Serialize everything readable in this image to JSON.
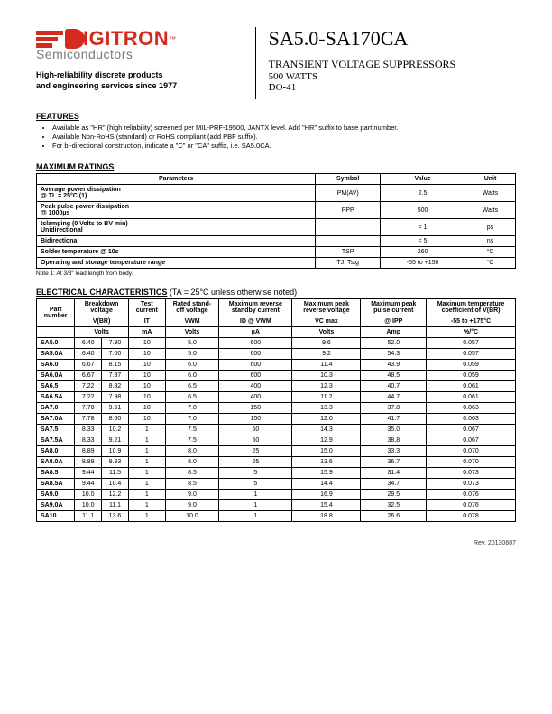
{
  "brand": {
    "name": "IGITRON",
    "sub": "Semiconductors",
    "tm": "™"
  },
  "tagline1": "High-reliability discrete products",
  "tagline2": "and engineering services since 1977",
  "title": "SA5.0-SA170CA",
  "subtitle": "TRANSIENT VOLTAGE SUPPRESSORS",
  "wattage": "500 WATTS",
  "package": "DO-41",
  "features_h": "FEATURES",
  "features": [
    "Available as \"HR\" (high reliability) screened per MIL-PRF-19500, JANTX level. Add \"HR\" suffix to base part number.",
    "Available Non-RoHS (standard) or RoHS compliant (add PBF suffix).",
    "For bi-directional construction, indicate a \"C\" or \"CA\" suffix, i.e. SA5.0CA."
  ],
  "ratings_h": "MAXIMUM RATINGS",
  "ratings_cols": [
    "Parameters",
    "Symbol",
    "Value",
    "Unit"
  ],
  "ratings": [
    {
      "p": "Average power dissipation\n@ TL = 25°C (1)",
      "s": "PM(AV)",
      "v": "2.5",
      "u": "Watts"
    },
    {
      "p": "Peak pulse power dissipation\n@ 1000µs",
      "s": "PPP",
      "v": "500",
      "u": "Watts"
    },
    {
      "p": "tclamping (0 Volts to BV min)\nUnidirectional",
      "s": "",
      "v": "< 1",
      "u": "ps"
    },
    {
      "p": "Bidirectional",
      "s": "",
      "v": "< 5",
      "u": "ns"
    },
    {
      "p": "Solder temperature @ 10s",
      "s": "TSP",
      "v": "260",
      "u": "°C"
    },
    {
      "p": "Operating and storage temperature range",
      "s": "TJ, Tstg",
      "v": "-55 to +150",
      "u": "°C"
    }
  ],
  "ratings_note": "Note 1: At 3/8\" lead length from body.",
  "elec_h": "ELECTRICAL CHARACTERISTICS",
  "elec_cond": "(TA = 25°C unless otherwise noted)",
  "elec_head1": [
    "Part number",
    "Breakdown voltage",
    "Test current",
    "Rated stand-off voltage",
    "Maximum reverse standby current",
    "Maximum peak reverse voltage",
    "Maximum peak pulse current",
    "Maximum temperature coefficient of V(BR)"
  ],
  "elec_head2": [
    "V(BR)",
    "IT",
    "VWM",
    "ID @ VWM",
    "VC max",
    "@ IPP",
    "-55 to +175°C"
  ],
  "elec_head3": [
    "Volts",
    "mA",
    "Volts",
    "µA",
    "Volts",
    "Amp",
    "%/°C"
  ],
  "elec_rows": [
    [
      "SA5.0",
      "6.40",
      "7.30",
      "10",
      "5.0",
      "600",
      "9.6",
      "52.0",
      "0.057"
    ],
    [
      "SA5.0A",
      "6.40",
      "7.00",
      "10",
      "5.0",
      "600",
      "9.2",
      "54.3",
      "0.057"
    ],
    [
      "SA6.0",
      "6.67",
      "8.15",
      "10",
      "6.0",
      "600",
      "11.4",
      "43.9",
      "0.059"
    ],
    [
      "SA6.0A",
      "6.67",
      "7.37",
      "10",
      "6.0",
      "600",
      "10.3",
      "48.5",
      "0.059"
    ],
    [
      "SA6.5",
      "7.22",
      "8.82",
      "10",
      "6.5",
      "400",
      "12.3",
      "40.7",
      "0.061"
    ],
    [
      "SA6.5A",
      "7.22",
      "7.98",
      "10",
      "6.5",
      "400",
      "11.2",
      "44.7",
      "0.061"
    ],
    [
      "SA7.0",
      "7.78",
      "9.51",
      "10",
      "7.0",
      "150",
      "13.3",
      "37.8",
      "0.063"
    ],
    [
      "SA7.0A",
      "7.78",
      "8.60",
      "10",
      "7.0",
      "150",
      "12.0",
      "41.7",
      "0.063"
    ],
    [
      "SA7.5",
      "8.33",
      "10.2",
      "1",
      "7.5",
      "50",
      "14.3",
      "35.0",
      "0.067"
    ],
    [
      "SA7.5A",
      "8.33",
      "9.21",
      "1",
      "7.5",
      "50",
      "12.9",
      "38.8",
      "0.067"
    ],
    [
      "SA8.0",
      "8.89",
      "10.9",
      "1",
      "8.0",
      "25",
      "15.0",
      "33.3",
      "0.070"
    ],
    [
      "SA8.0A",
      "8.89",
      "9.83",
      "1",
      "8.0",
      "25",
      "13.6",
      "36.7",
      "0.070"
    ],
    [
      "SA8.5",
      "9.44",
      "11.5",
      "1",
      "8.5",
      "5",
      "15.9",
      "31.4",
      "0.073"
    ],
    [
      "SA8.5A",
      "9.44",
      "10.4",
      "1",
      "8.5",
      "5",
      "14.4",
      "34.7",
      "0.073"
    ],
    [
      "SA9.0",
      "10.0",
      "12.2",
      "1",
      "9.0",
      "1",
      "16.9",
      "29.5",
      "0.076"
    ],
    [
      "SA9.0A",
      "10.0",
      "11.1",
      "1",
      "9.0",
      "1",
      "15.4",
      "32.5",
      "0.076"
    ],
    [
      "SA10",
      "11.1",
      "13.6",
      "1",
      "10.0",
      "1",
      "18.8",
      "26.6",
      "0.078"
    ]
  ],
  "rev": "Rev. 20130607"
}
